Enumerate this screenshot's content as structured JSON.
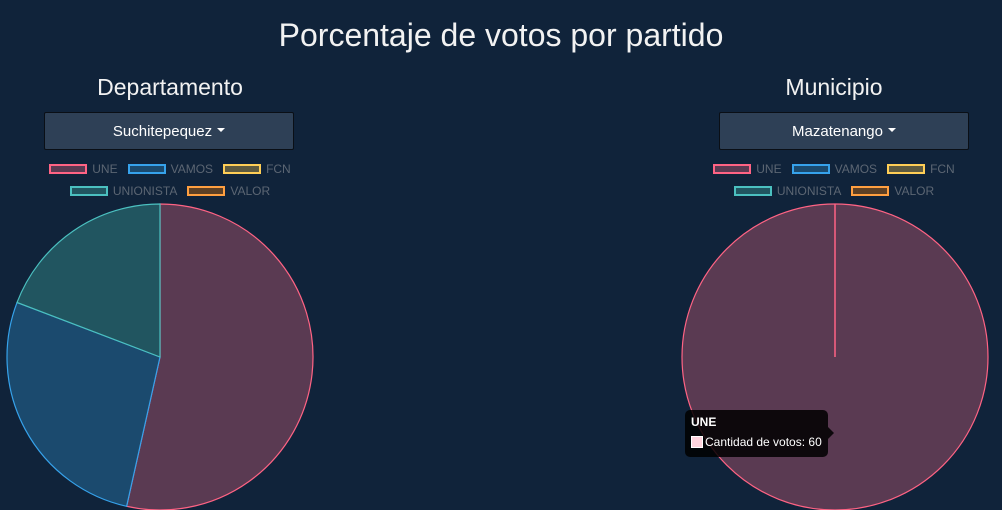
{
  "page_title": "Porcentaje de votos por partido",
  "colors": {
    "UNE": {
      "fill": "#5a3a52",
      "stroke": "#ff6384"
    },
    "VAMOS": {
      "fill": "#1b4a6e",
      "stroke": "#36a2eb"
    },
    "FCN": {
      "fill": "#5e5a3f",
      "stroke": "#ffce56"
    },
    "UNIONISTA": {
      "fill": "#215560",
      "stroke": "#4bc0c0"
    },
    "VALOR": {
      "fill": "#5e4024",
      "stroke": "#ff9f40"
    }
  },
  "tooltip": {
    "title": "UNE",
    "label": "Cantidad de votos: 60"
  },
  "chart_data": [
    {
      "type": "pie",
      "title": "Departamento",
      "dropdown_label": "Suchitepequez",
      "legend_rows": [
        [
          "UNE",
          "VAMOS",
          "FCN"
        ],
        [
          "UNIONISTA",
          "VALOR"
        ]
      ],
      "categories": [
        "UNE",
        "VAMOS",
        "FCN",
        "UNIONISTA",
        "VALOR"
      ],
      "values": [
        53.5,
        27.3,
        0,
        19.2,
        0
      ]
    },
    {
      "type": "pie",
      "title": "Municipio",
      "dropdown_label": "Mazatenango",
      "legend_rows": [
        [
          "UNE",
          "VAMOS",
          "FCN"
        ],
        [
          "UNIONISTA",
          "VALOR"
        ]
      ],
      "categories": [
        "UNE",
        "VAMOS",
        "FCN",
        "UNIONISTA",
        "VALOR"
      ],
      "values": [
        60,
        0,
        0,
        0,
        0
      ]
    }
  ]
}
